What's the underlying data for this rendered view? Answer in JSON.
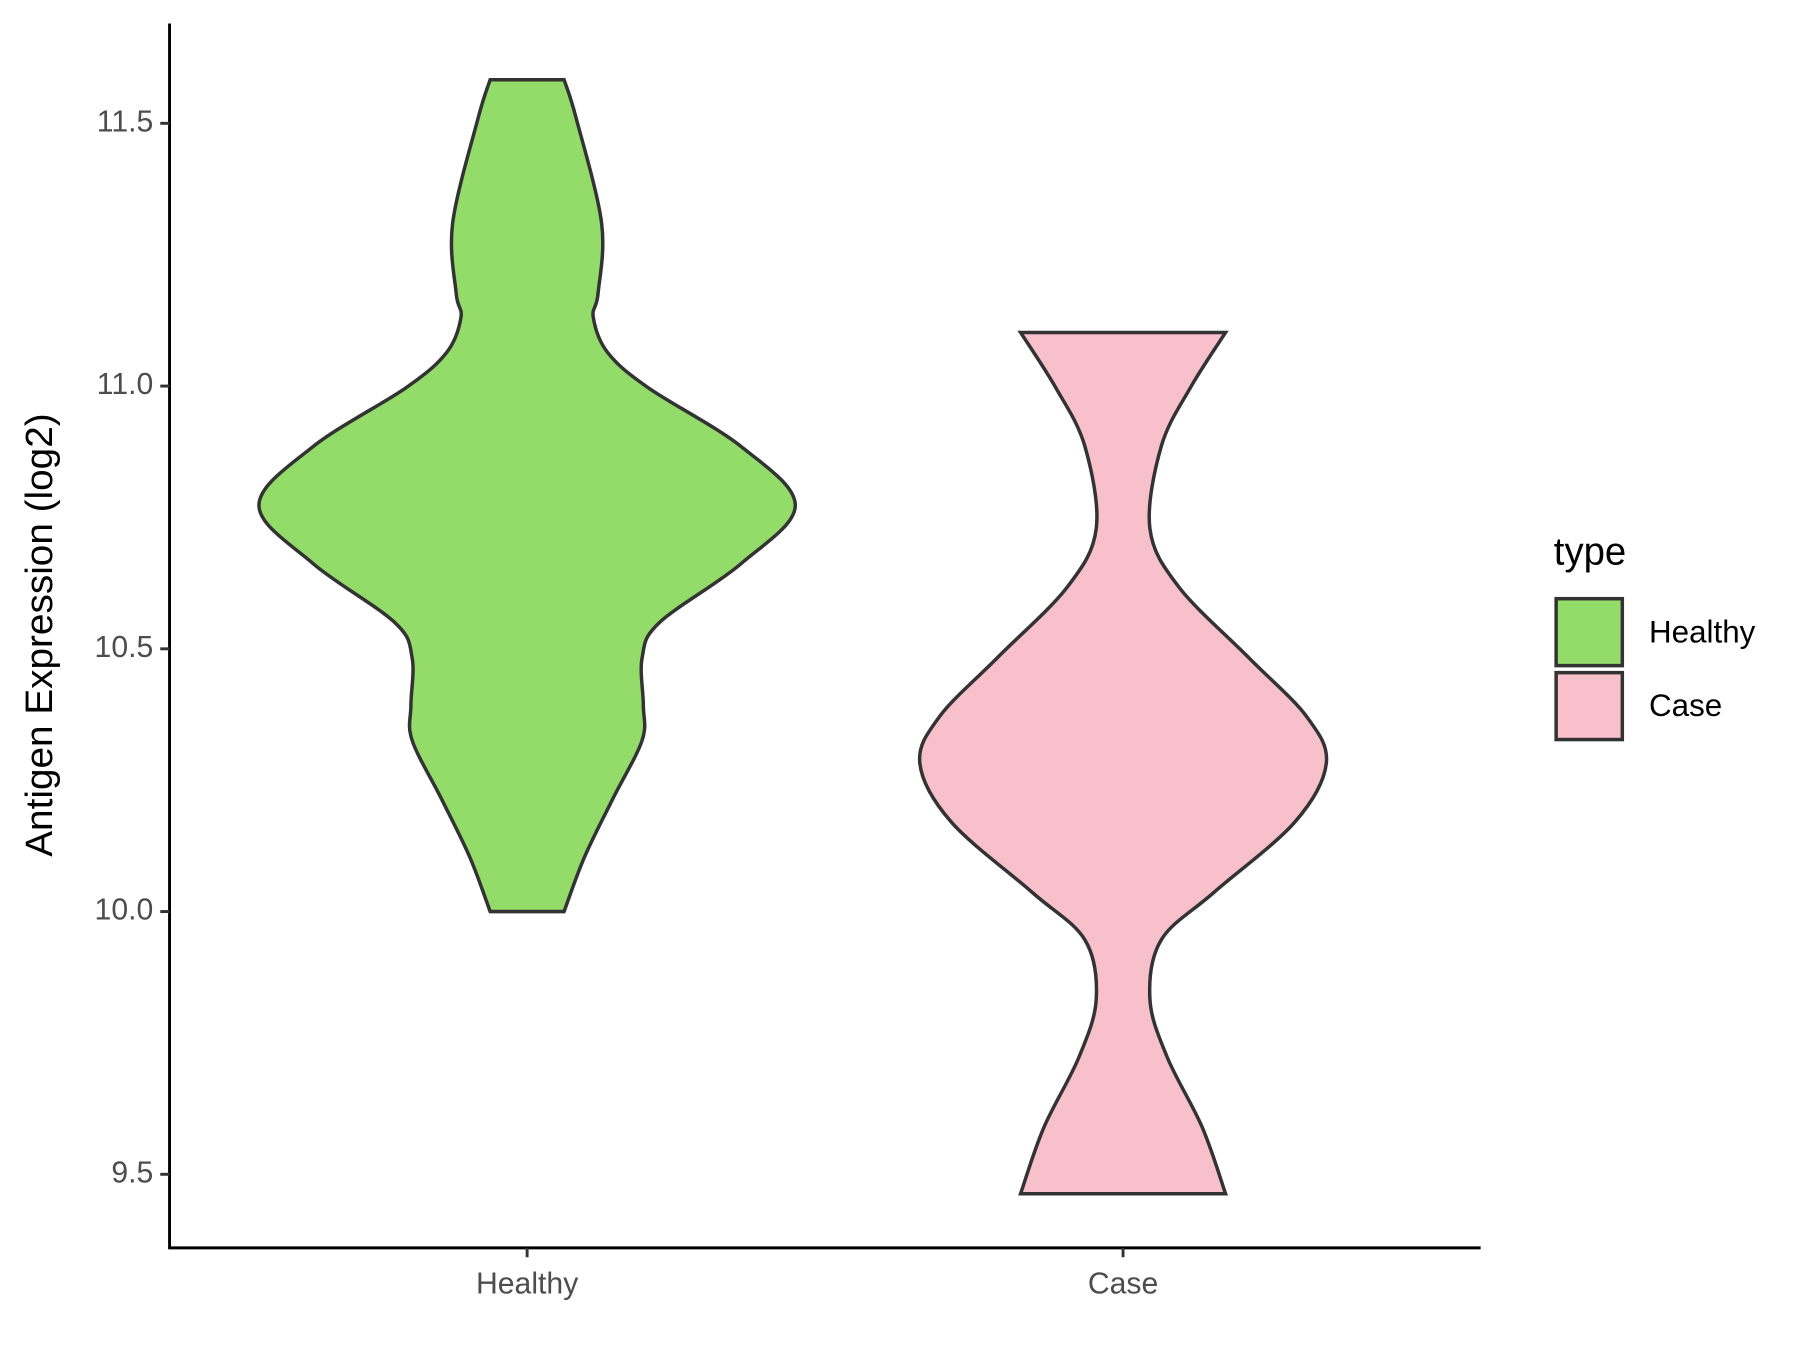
{
  "chart_data": {
    "type": "violin",
    "y_label": "Antigen Expression (log2)",
    "categories": [
      "Healthy",
      "Case"
    ],
    "ylim": [
      9.36,
      11.69
    ],
    "yticks": [
      9.5,
      {
        "value": 10,
        "label": "10.0"
      },
      10.5,
      {
        "value": 11,
        "label": "11.0"
      },
      11.5
    ],
    "legend_title": "type",
    "legend_position": "right",
    "series": [
      {
        "name": "Healthy",
        "color": "#93dc6a",
        "y": [
          11.583,
          11.511,
          11.31,
          11.176,
          11.131,
          11.064,
          10.997,
          10.885,
          10.773,
          10.662,
          10.55,
          10.483,
          10.393,
          10.326,
          10.215,
          10.103,
          10.0
        ],
        "half_widths": [
          0.062,
          0.082,
          0.125,
          0.119,
          0.111,
          0.135,
          0.203,
          0.359,
          0.45,
          0.359,
          0.222,
          0.193,
          0.195,
          0.193,
          0.144,
          0.096,
          0.062
        ]
      },
      {
        "name": "Case",
        "color": "#f7c0cb",
        "y": [
          11.102,
          10.997,
          10.885,
          10.729,
          10.617,
          10.483,
          10.371,
          10.282,
          10.17,
          10.036,
          9.946,
          9.834,
          9.723,
          9.589,
          9.463
        ],
        "half_widths": [
          0.172,
          0.113,
          0.064,
          0.045,
          0.094,
          0.211,
          0.308,
          0.341,
          0.288,
          0.152,
          0.064,
          0.045,
          0.074,
          0.133,
          0.172
        ]
      }
    ]
  }
}
